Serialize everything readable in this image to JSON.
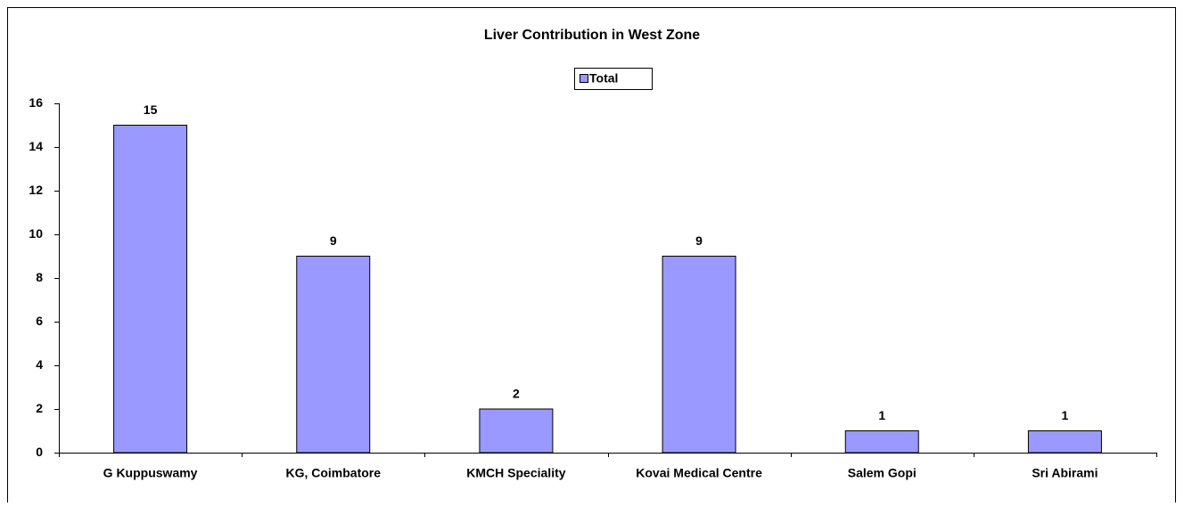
{
  "chart_data": {
    "type": "bar",
    "title": "Liver Contribution in West Zone",
    "categories": [
      "G Kuppuswamy",
      "KG, Coimbatore",
      "KMCH Speciality",
      "Kovai Medical Centre",
      "Salem Gopi",
      "Sri Abirami"
    ],
    "series": [
      {
        "name": "Total",
        "color": "#9999ff",
        "values": [
          15,
          9,
          2,
          9,
          1,
          1
        ]
      }
    ],
    "ylim": [
      0,
      16
    ],
    "yticks": [
      0,
      2,
      4,
      6,
      8,
      10,
      12,
      14,
      16
    ],
    "legend": "top",
    "grid": false
  }
}
